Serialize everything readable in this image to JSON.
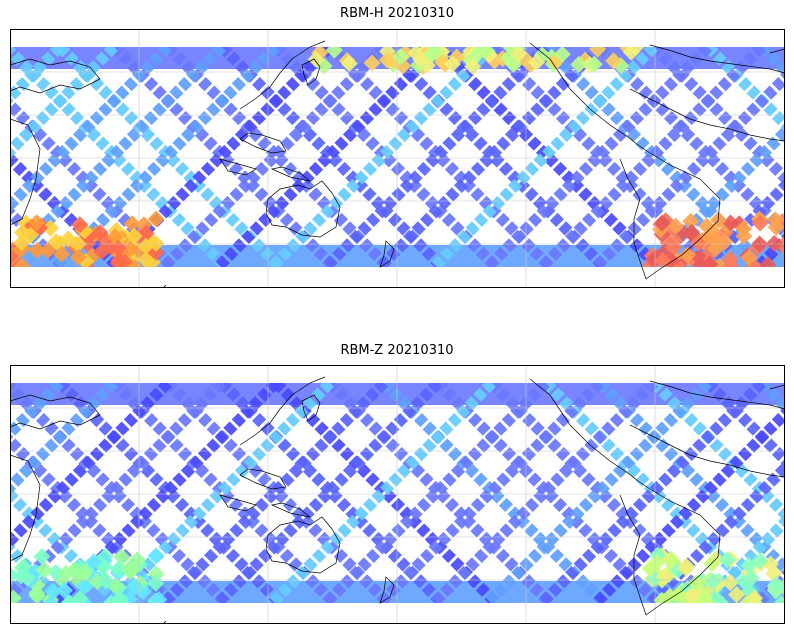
{
  "panels": [
    {
      "id": "h",
      "title": "RBM-H 20210310",
      "colormap": "jet",
      "track_colors": [
        "#4a4aff",
        "#5a64ff",
        "#6a78ff",
        "#5fa0ff",
        "#66ccff"
      ],
      "hot_regions": [
        {
          "place": "south-east-pacific",
          "colors": [
            "#ff7b5a",
            "#e85a5a",
            "#ffa24d"
          ]
        },
        {
          "place": "south-west-edge",
          "colors": [
            "#ff6a4a",
            "#ff9a3a",
            "#ffd23a"
          ]
        },
        {
          "place": "north-pacific-band",
          "colors": [
            "#f2f27a",
            "#ffcf5a",
            "#b9ff8a"
          ]
        }
      ]
    },
    {
      "id": "z",
      "title": "RBM-Z 20210310",
      "colormap": "jet",
      "track_colors": [
        "#4a4aff",
        "#5a64ff",
        "#6a78ff",
        "#5fa0ff",
        "#66ccff"
      ],
      "hot_regions": [
        {
          "place": "south-east-pacific",
          "colors": [
            "#f0f07a",
            "#c8ff7a",
            "#8affc0"
          ]
        },
        {
          "place": "south-west-edge",
          "colors": [
            "#7affc8",
            "#9aff9a",
            "#66e6ff"
          ]
        }
      ]
    }
  ],
  "map": {
    "projection": "plate-carree",
    "central_longitude": 180,
    "lat_range": [
      -90,
      90
    ],
    "gridlines": true,
    "coastlines": true
  }
}
